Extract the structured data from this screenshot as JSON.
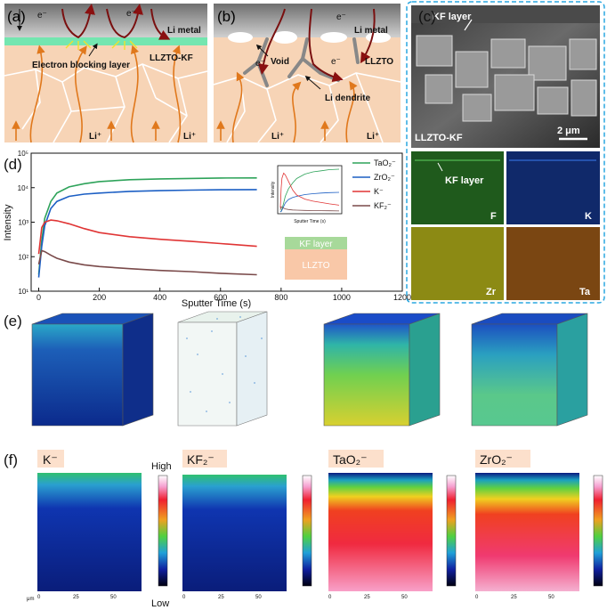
{
  "panel_a": {
    "label": "(a)",
    "li_metal": "Li metal",
    "interlayer_label": "LLZTO-KF",
    "ebl": "Electron blocking layer",
    "electron": "e⁻",
    "li_ion": "Li⁺"
  },
  "panel_b": {
    "label": "(b)",
    "li_metal": "Li metal",
    "electrolyte": "LLZTO",
    "void": "Void",
    "dendrite": "Li dendrite",
    "electron": "e⁻",
    "li_ion": "Li⁺"
  },
  "panel_c": {
    "label": "(c)",
    "kf_layer": "KF layer",
    "sample": "LLZTO-KF",
    "scale_bar": "2 μm",
    "eds": [
      {
        "element": "F",
        "color": "#1f5a1c"
      },
      {
        "element": "K",
        "color": "#10296a"
      },
      {
        "element": "Zr",
        "color": "#8c8a14"
      },
      {
        "element": "Ta",
        "color": "#7a4612"
      }
    ],
    "eds_kf_layer": "KF layer"
  },
  "panel_d": {
    "label": "(d)",
    "inset_x_label": "Sputter Time (s)",
    "inset_y_label": "Intensity",
    "schematic_top": "KF layer",
    "schematic_bottom": "LLZTO"
  },
  "chart_data": {
    "type": "line",
    "title": "",
    "xlabel": "Sputter Time (s)",
    "ylabel": "Intensity",
    "xlim": [
      -25,
      1200
    ],
    "ylim": [
      10,
      100000
    ],
    "yscale": "log",
    "xticks": [
      "0",
      "200",
      "400",
      "600",
      "800",
      "1000",
      "1200"
    ],
    "yticks": [
      "10¹",
      "10²",
      "10³",
      "10⁴",
      "10⁵"
    ],
    "legend_position": "top-right",
    "x": [
      0,
      10,
      20,
      40,
      60,
      100,
      150,
      200,
      300,
      400,
      500,
      600,
      720
    ],
    "series": [
      {
        "name": "TaO₂⁻",
        "color": "#2ea35a",
        "values": [
          30,
          300,
          1300,
          4000,
          7000,
          10500,
          13000,
          15000,
          17000,
          18000,
          18500,
          19000,
          19200
        ]
      },
      {
        "name": "ZrO₂⁻",
        "color": "#1c5fc4",
        "values": [
          25,
          200,
          800,
          2500,
          4000,
          5600,
          6500,
          7000,
          7800,
          8200,
          8500,
          8700,
          8800
        ]
      },
      {
        "name": "K⁻",
        "color": "#e03535",
        "values": [
          120,
          700,
          1000,
          1150,
          1100,
          900,
          650,
          500,
          380,
          320,
          280,
          240,
          200
        ]
      },
      {
        "name": "KF₂⁻",
        "color": "#7a4a4a",
        "values": [
          60,
          150,
          140,
          110,
          90,
          70,
          58,
          52,
          45,
          40,
          37,
          33,
          30
        ]
      }
    ]
  },
  "panel_e": {
    "label": "(e)"
  },
  "panel_f": {
    "label": "(f)",
    "colorbar_high": "High",
    "colorbar_low": "Low",
    "axis_unit": "μm",
    "axis_ticks": [
      "0",
      "25",
      "50"
    ],
    "maps": [
      {
        "ion": "K⁻"
      },
      {
        "ion": "KF₂⁻"
      },
      {
        "ion": "TaO₂⁻"
      },
      {
        "ion": "ZrO₂⁻"
      }
    ]
  }
}
